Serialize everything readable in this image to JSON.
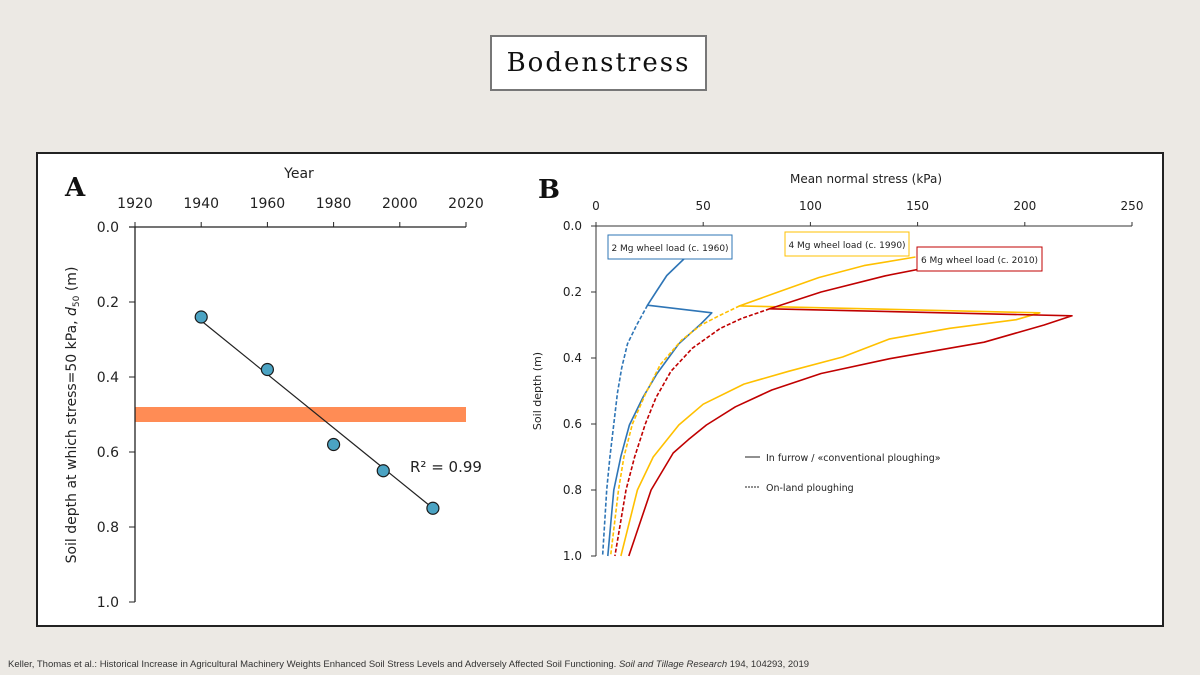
{
  "slide": {
    "title": "Bodenstress",
    "footer": {
      "authors_title": "Keller, Thomas et al.: Historical Increase in Agricultural Machinery Weights Enhanced Soil Stress Levels and Adversely Affected Soil Functioning.",
      "journal": "Soil and Tillage Research",
      "details": "194, 104293, 2019"
    }
  },
  "chart_data": [
    {
      "type": "scatter",
      "panel_label": "A",
      "title": "",
      "xlabel": "Year",
      "ylabel": "Soil depth at which stress=50 kPa, d50 (m)",
      "xlim": [
        1920,
        2020
      ],
      "ylim": [
        0.0,
        1.0
      ],
      "y_inverted": true,
      "x_ticks": [
        "1920",
        "1940",
        "1960",
        "1980",
        "2000",
        "2020"
      ],
      "y_ticks": [
        "0.0",
        "0.2",
        "0.4",
        "0.6",
        "0.8",
        "1.0"
      ],
      "points": [
        {
          "x": 1940,
          "y": 0.24
        },
        {
          "x": 1960,
          "y": 0.38
        },
        {
          "x": 1980,
          "y": 0.58
        },
        {
          "x": 1995,
          "y": 0.65
        },
        {
          "x": 2010,
          "y": 0.75
        }
      ],
      "trendline": {
        "x": [
          1940,
          2010
        ],
        "y": [
          0.25,
          0.75
        ]
      },
      "annotation": "R² = 0.99",
      "band": {
        "y": [
          0.48,
          0.52
        ],
        "color": "#ff8c55"
      },
      "point_color": "#4ba3c3"
    },
    {
      "type": "line",
      "panel_label": "B",
      "xlabel": "Mean normal stress (kPa)",
      "ylabel": "Soil depth (m)",
      "xlim": [
        0,
        250
      ],
      "ylim": [
        0.0,
        1.0
      ],
      "y_inverted": true,
      "x_ticks": [
        "0",
        "50",
        "100",
        "150",
        "200",
        "250"
      ],
      "y_ticks": [
        "0.0",
        "0.2",
        "0.4",
        "0.6",
        "0.8",
        "1.0"
      ],
      "legend": {
        "solid": "In furrow / «conventional ploughing»",
        "dashed": "On-land ploughing"
      },
      "series": [
        {
          "name": "2 Mg wheel load (c. 1960)",
          "color": "#2e75b6",
          "style": "solid",
          "points": [
            [
              41,
              0.1
            ],
            [
              33,
              0.15
            ],
            [
              28,
              0.2
            ],
            [
              24,
              0.24
            ],
            [
              54,
              0.263
            ],
            [
              49,
              0.296
            ],
            [
              38.6,
              0.357
            ],
            [
              28.5,
              0.447
            ],
            [
              22,
              0.518
            ],
            [
              15.6,
              0.603
            ],
            [
              11.6,
              0.698
            ],
            [
              8.3,
              0.8
            ],
            [
              5.5,
              1.0
            ]
          ]
        },
        {
          "name": "2 Mg wheel load (c. 1960) on-land",
          "color": "#2e75b6",
          "style": "dashed",
          "points": [
            [
              24,
              0.24
            ],
            [
              19,
              0.3
            ],
            [
              14.7,
              0.357
            ],
            [
              12,
              0.43
            ],
            [
              10,
              0.507
            ],
            [
              8.3,
              0.6
            ],
            [
              6.5,
              0.7
            ],
            [
              5,
              0.8
            ],
            [
              3.1,
              1.0
            ]
          ]
        },
        {
          "name": "4 Mg wheel load (c. 1990)",
          "color": "#ffc000",
          "style": "solid",
          "points": [
            [
              149,
              0.094
            ],
            [
              125,
              0.12
            ],
            [
              104,
              0.156
            ],
            [
              85,
              0.2
            ],
            [
              67,
              0.242
            ],
            [
              207,
              0.263
            ],
            [
              196,
              0.284
            ],
            [
              165,
              0.31
            ],
            [
              137,
              0.342
            ],
            [
              115,
              0.397
            ],
            [
              90,
              0.44
            ],
            [
              69,
              0.479
            ],
            [
              50,
              0.54
            ],
            [
              38.6,
              0.603
            ],
            [
              26.7,
              0.7
            ],
            [
              19.3,
              0.8
            ],
            [
              11.6,
              1.0
            ]
          ]
        },
        {
          "name": "4 Mg wheel load (c. 1990) on-land",
          "color": "#ffc000",
          "style": "dashed",
          "points": [
            [
              67,
              0.242
            ],
            [
              58,
              0.27
            ],
            [
              49,
              0.3
            ],
            [
              40,
              0.345
            ],
            [
              30,
              0.42
            ],
            [
              23,
              0.51
            ],
            [
              17,
              0.6
            ],
            [
              13,
              0.7
            ],
            [
              10.5,
              0.8
            ],
            [
              6.8,
              1.0
            ]
          ]
        },
        {
          "name": "6 Mg wheel load (c. 2010)",
          "color": "#c00000",
          "style": "solid",
          "points": [
            [
              179,
              0.095
            ],
            [
              135,
              0.151
            ],
            [
              105,
              0.2
            ],
            [
              81,
              0.251
            ],
            [
              222,
              0.272
            ],
            [
              209,
              0.3
            ],
            [
              181,
              0.352
            ],
            [
              137,
              0.402
            ],
            [
              105,
              0.447
            ],
            [
              82,
              0.497
            ],
            [
              65,
              0.548
            ],
            [
              51.5,
              0.603
            ],
            [
              43,
              0.648
            ],
            [
              36,
              0.688
            ],
            [
              25.7,
              0.8
            ],
            [
              15.3,
              1.0
            ]
          ]
        },
        {
          "name": "6 Mg wheel load (c. 2010) on-land",
          "color": "#c00000",
          "style": "dashed",
          "points": [
            [
              81,
              0.251
            ],
            [
              68,
              0.28
            ],
            [
              58,
              0.31
            ],
            [
              45,
              0.37
            ],
            [
              35,
              0.44
            ],
            [
              28,
              0.52
            ],
            [
              23,
              0.6
            ],
            [
              18,
              0.7
            ],
            [
              14,
              0.8
            ],
            [
              8.8,
              1.0
            ]
          ]
        }
      ],
      "labels": [
        {
          "text": "2 Mg wheel load (c. 1960)",
          "prefix": "2 Mg wheel load (",
          "italic": "c.",
          "suffix": " 1960)",
          "color": "#2e75b6"
        },
        {
          "text": "4 Mg wheel load (c. 1990)",
          "prefix": "4 Mg wheel load (",
          "italic": "c.",
          "suffix": " 1990)",
          "color": "#ffc000"
        },
        {
          "text": "6 Mg wheel load (c. 2010)",
          "prefix": "6 Mg wheel load (",
          "italic": "c.",
          "suffix": " 2010)",
          "color": "#c00000"
        }
      ]
    }
  ]
}
